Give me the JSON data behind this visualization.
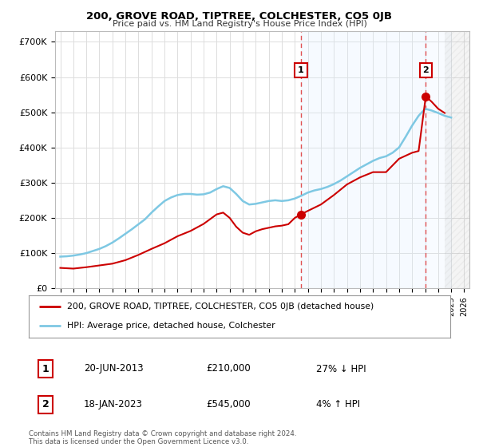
{
  "title": "200, GROVE ROAD, TIPTREE, COLCHESTER, CO5 0JB",
  "subtitle": "Price paid vs. HM Land Registry's House Price Index (HPI)",
  "ylabel_ticks": [
    "£0",
    "£100K",
    "£200K",
    "£300K",
    "£400K",
    "£500K",
    "£600K",
    "£700K"
  ],
  "ytick_values": [
    0,
    100000,
    200000,
    300000,
    400000,
    500000,
    600000,
    700000
  ],
  "ylim": [
    0,
    730000
  ],
  "hpi_years": [
    1995,
    1995.5,
    1996,
    1996.5,
    1997,
    1997.5,
    1998,
    1998.5,
    1999,
    1999.5,
    2000,
    2000.5,
    2001,
    2001.5,
    2002,
    2002.5,
    2003,
    2003.5,
    2004,
    2004.5,
    2005,
    2005.5,
    2006,
    2006.5,
    2007,
    2007.5,
    2008,
    2008.5,
    2009,
    2009.5,
    2010,
    2010.5,
    2011,
    2011.5,
    2012,
    2012.5,
    2013,
    2013.5,
    2014,
    2014.5,
    2015,
    2015.5,
    2016,
    2016.5,
    2017,
    2017.5,
    2018,
    2018.5,
    2019,
    2019.5,
    2020,
    2020.5,
    2021,
    2021.5,
    2022,
    2022.5,
    2023,
    2023.5,
    2024,
    2024.5,
    2025
  ],
  "hpi_values": [
    90000,
    91000,
    93000,
    96000,
    100000,
    106000,
    112000,
    120000,
    130000,
    142000,
    155000,
    168000,
    182000,
    196000,
    215000,
    232000,
    248000,
    258000,
    265000,
    268000,
    268000,
    266000,
    267000,
    272000,
    282000,
    290000,
    285000,
    268000,
    248000,
    238000,
    240000,
    244000,
    248000,
    250000,
    248000,
    250000,
    255000,
    263000,
    272000,
    278000,
    282000,
    288000,
    296000,
    306000,
    318000,
    330000,
    342000,
    352000,
    362000,
    370000,
    375000,
    385000,
    400000,
    430000,
    462000,
    490000,
    510000,
    505000,
    498000,
    490000,
    485000
  ],
  "price_years": [
    1995,
    1996,
    1997,
    1998,
    1999,
    2000,
    2001,
    2002,
    2003,
    2004,
    2005,
    2006,
    2007,
    2007.5,
    2008,
    2008.5,
    2009,
    2009.5,
    2010,
    2010.5,
    2011,
    2011.5,
    2012,
    2012.5,
    2013,
    2013.47,
    2014,
    2015,
    2016,
    2017,
    2018,
    2019,
    2020,
    2021,
    2022,
    2022.5,
    2023.05,
    2023.5,
    2024,
    2024.5
  ],
  "price_values": [
    58000,
    56000,
    60000,
    65000,
    70000,
    80000,
    95000,
    112000,
    128000,
    148000,
    163000,
    183000,
    210000,
    215000,
    200000,
    175000,
    158000,
    152000,
    162000,
    168000,
    172000,
    176000,
    178000,
    182000,
    200000,
    210000,
    220000,
    238000,
    265000,
    295000,
    315000,
    330000,
    330000,
    368000,
    385000,
    390000,
    545000,
    530000,
    510000,
    498000
  ],
  "sale1_year": 2013.47,
  "sale1_price": 210000,
  "sale2_year": 2023.05,
  "sale2_price": 545000,
  "sale1_date": "20-JUN-2013",
  "sale1_amount": "£210,000",
  "sale1_hpi": "27% ↓ HPI",
  "sale2_date": "18-JAN-2023",
  "sale2_amount": "£545,000",
  "sale2_hpi": "4% ↑ HPI",
  "hpi_color": "#7ec8e3",
  "price_color": "#cc0000",
  "vline_color": "#e05050",
  "grid_color": "#dddddd",
  "shade_color": "#ddeeff",
  "hatch_color": "#cccccc",
  "bg_color": "#ffffff",
  "legend_label1": "200, GROVE ROAD, TIPTREE, COLCHESTER, CO5 0JB (detached house)",
  "legend_label2": "HPI: Average price, detached house, Colchester",
  "footnote": "Contains HM Land Registry data © Crown copyright and database right 2024.\nThis data is licensed under the Open Government Licence v3.0."
}
